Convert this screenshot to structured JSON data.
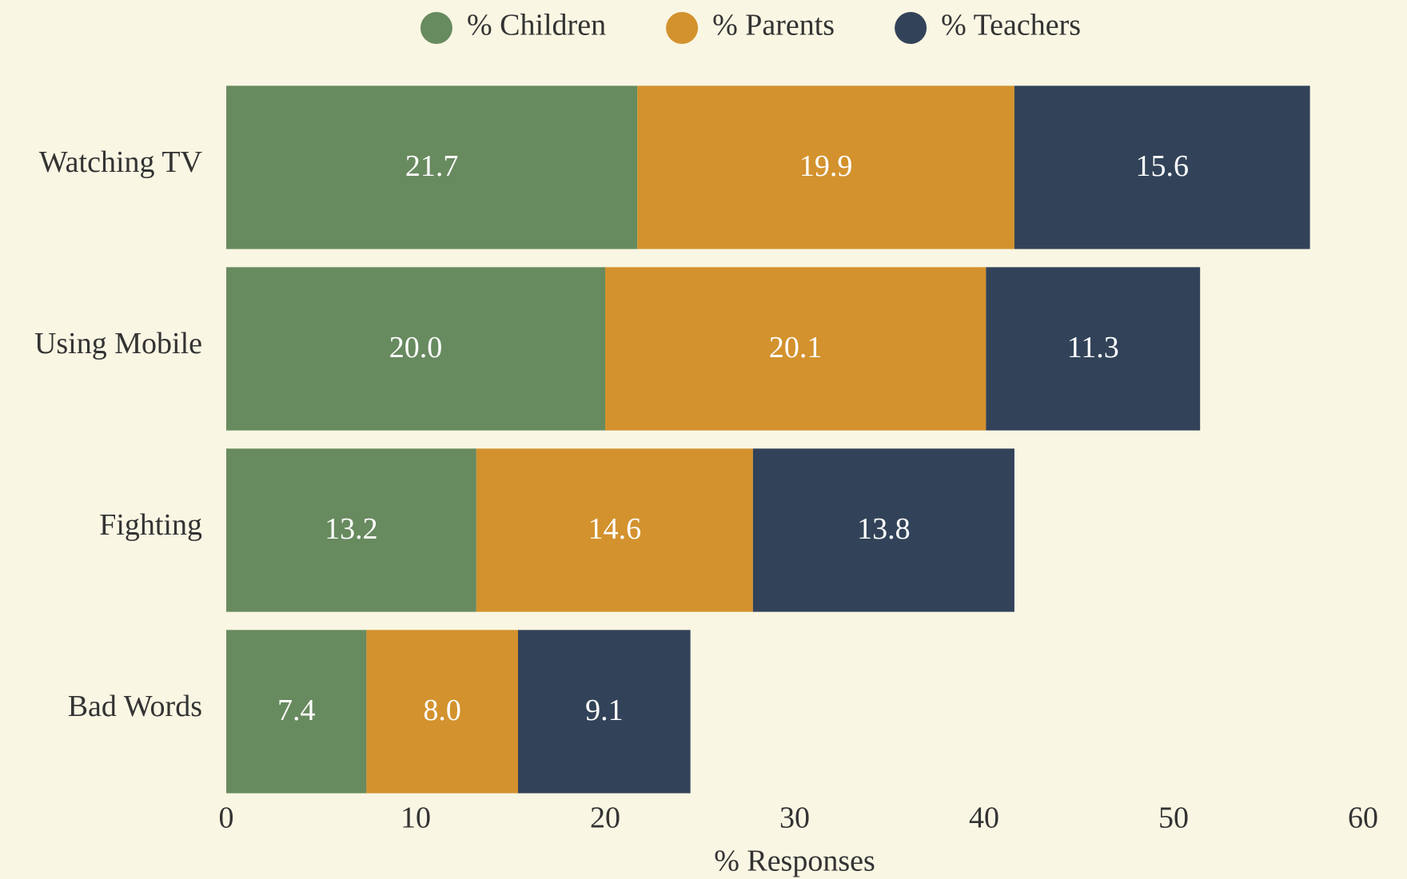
{
  "chart_data": {
    "type": "stacked_bar_horizontal",
    "categories": [
      "Watching TV",
      "Using Mobile",
      "Fighting",
      "Bad Words"
    ],
    "series": [
      {
        "name": "% Children",
        "color": "#688a5f",
        "values": [
          21.7,
          20,
          13.2,
          7.4
        ],
        "value_labels": [
          "21.7",
          "20.0",
          "13.2",
          "7.4"
        ]
      },
      {
        "name": "% Parents",
        "color": "#d3922d",
        "values": [
          19.9,
          20.1,
          14.6,
          8
        ],
        "value_labels": [
          "19.9",
          "20.1",
          "14.6",
          "8.0"
        ]
      },
      {
        "name": "% Teachers",
        "color": "#324359",
        "values": [
          15.6,
          11.3,
          13.8,
          9.1
        ],
        "value_labels": [
          "15.6",
          "11.3",
          "13.8",
          "9.1"
        ]
      }
    ],
    "xlabel": "% Responses",
    "xlim": [
      0,
      60
    ],
    "xticks": [
      0,
      10,
      20,
      30,
      40,
      50,
      60
    ],
    "legend": "top"
  }
}
